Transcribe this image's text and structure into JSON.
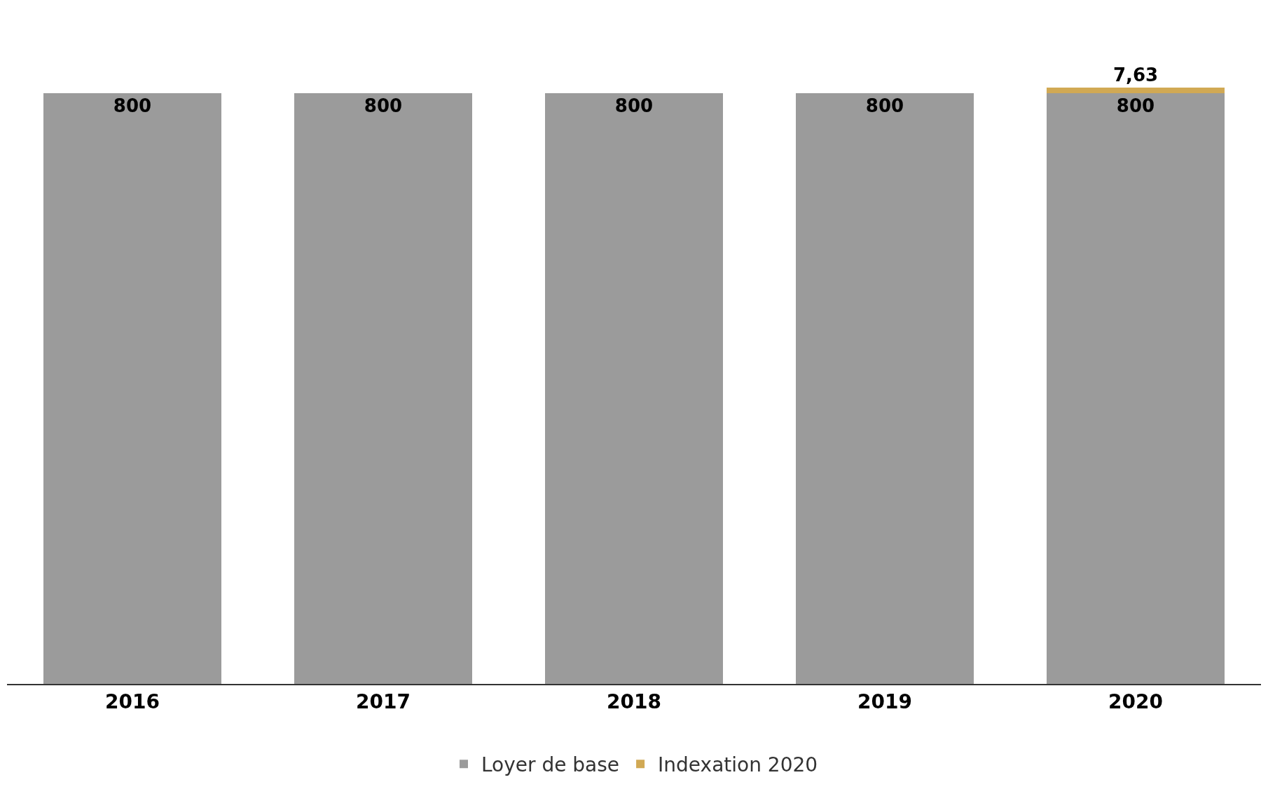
{
  "chart_data": {
    "type": "bar",
    "stacked": true,
    "categories": [
      "2016",
      "2017",
      "2018",
      "2019",
      "2020"
    ],
    "series": [
      {
        "name": "Loyer de base",
        "color": "#9b9b9b",
        "values": [
          800,
          800,
          800,
          800,
          800
        ],
        "value_labels": [
          "800",
          "800",
          "800",
          "800",
          "800"
        ]
      },
      {
        "name": "Indexation 2020",
        "color": "#d1a954",
        "values": [
          null,
          null,
          null,
          null,
          7.63
        ],
        "value_labels": [
          null,
          null,
          null,
          null,
          "7,63"
        ]
      }
    ],
    "legend": "bottom"
  }
}
